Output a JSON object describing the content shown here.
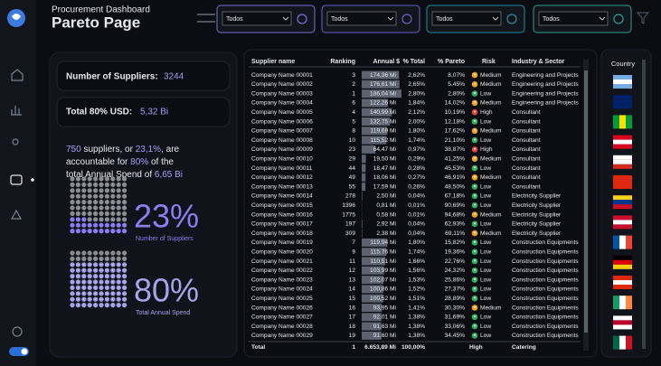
{
  "header": {
    "subtitle": "Procurement Dashboard",
    "title": "Pareto Page",
    "filters": [
      "Todos",
      "Todos",
      "Todos",
      "Todos"
    ]
  },
  "cards": {
    "suppliers_label": "Number of Suppliers:",
    "suppliers_value": "3244",
    "total_label": "Total 80% USD:",
    "total_value": "5,32 Bi"
  },
  "narrative": [
    "750",
    " suppliers, or ",
    "23,1%",
    ", are accountable for ",
    "80%",
    " of the total Annual Spend of ",
    "6,65 Bi"
  ],
  "waffles": [
    {
      "value": 23,
      "label": "23%",
      "caption": "Number of Suppliers",
      "color": "#8f7cf2"
    },
    {
      "value": 80,
      "label": "80%",
      "caption": "Total Annual Spend",
      "color": "#a7a3e8"
    }
  ],
  "table": {
    "columns": [
      "Supplier name",
      "Ranking",
      "Annual $",
      "% Total",
      "% Pareto",
      "Risk",
      "Industry & Sector"
    ],
    "risk_colors": {
      "High": "#e0463c",
      "Medium": "#f0a020",
      "Low": "#2fae5c"
    },
    "rows": [
      [
        "Company Name 00001",
        3,
        {
          "value": 174.36,
          "label": "174,36 Mi"
        },
        "2,62%",
        "8,07%",
        "Medium",
        "Engineering and Projects"
      ],
      [
        "Company Name 00002",
        2,
        {
          "value": 176.61,
          "label": "176,61 Mi"
        },
        "2,65%",
        "5,45%",
        "Medium",
        "Engineering and Projects"
      ],
      [
        "Company Name 00003",
        1,
        {
          "value": 186.04,
          "label": "186,04 Mi"
        },
        "2,80%",
        "2,80%",
        "Low",
        "Engineering and Projects"
      ],
      [
        "Company Name 00004",
        6,
        {
          "value": 122.26,
          "label": "122,26 Mi"
        },
        "1,84%",
        "14,02%",
        "Medium",
        "Engineering and Projects"
      ],
      [
        "Company Name 00005",
        4,
        {
          "value": 140.99,
          "label": "140,99 Mi"
        },
        "2,12%",
        "10,19%",
        "High",
        "Consultant"
      ],
      [
        "Company Name 00006",
        5,
        {
          "value": 132.75,
          "label": "132,75 Mi"
        },
        "2,00%",
        "12,18%",
        "Low",
        "Consultant"
      ],
      [
        "Company Name 00007",
        8,
        {
          "value": 119.69,
          "label": "119,69 Mi"
        },
        "1,80%",
        "17,62%",
        "Medium",
        "Consultant"
      ],
      [
        "Company Name 00008",
        10,
        {
          "value": 115.52,
          "label": "115,52 Mi"
        },
        "1,74%",
        "21,10%",
        "Low",
        "Consultant"
      ],
      [
        "Company Name 00009",
        23,
        {
          "value": 64.47,
          "label": "64,47 Mi"
        },
        "0,97%",
        "38,87%",
        "High",
        "Consultant"
      ],
      [
        "Company Name 00010",
        29,
        {
          "value": 19.5,
          "label": "19,50 Mi"
        },
        "0,29%",
        "41,25%",
        "Medium",
        "Consultant"
      ],
      [
        "Company Name 00011",
        44,
        {
          "value": 18.47,
          "label": "18,47 Mi"
        },
        "0,28%",
        "45,53%",
        "Low",
        "Consultant"
      ],
      [
        "Company Name 00012",
        49,
        {
          "value": 18.06,
          "label": "18,06 Mi"
        },
        "0,27%",
        "46,91%",
        "Medium",
        "Consultant"
      ],
      [
        "Company Name 00013",
        55,
        {
          "value": 17.59,
          "label": "17,59 Mi"
        },
        "0,26%",
        "48,50%",
        "Low",
        "Consultant"
      ],
      [
        "Company Name 00014",
        278,
        {
          "value": 2.5,
          "label": "2,50 Mi"
        },
        "0,04%",
        "67,18%",
        "Low",
        "Electricity Supplier"
      ],
      [
        "Company Name 00015",
        1396,
        {
          "value": 0.81,
          "label": "0,81 Mi"
        },
        "0,01%",
        "90,69%",
        "Low",
        "Electricity Supplier"
      ],
      [
        "Company Name 00016",
        1775,
        {
          "value": 0.58,
          "label": "0,58 Mi"
        },
        "0,01%",
        "94,68%",
        "Medium",
        "Electricity Supplier"
      ],
      [
        "Company Name 00017",
        197,
        {
          "value": 2.92,
          "label": "2,92 Mi"
        },
        "0,04%",
        "62,93%",
        "Low",
        "Electricity Supplier"
      ],
      [
        "Company Name 00018",
        309,
        {
          "value": 2.38,
          "label": "2,38 Mi"
        },
        "0,04%",
        "69,11%",
        "Medium",
        "Electricity Supplier"
      ],
      [
        "Company Name 00019",
        7,
        {
          "value": 119.94,
          "label": "119,94 Mi"
        },
        "1,80%",
        "15,82%",
        "Low",
        "Construction Equipments"
      ],
      [
        "Company Name 00020",
        9,
        {
          "value": 115.76,
          "label": "115,76 Mi"
        },
        "1,74%",
        "19,36%",
        "Low",
        "Construction Equipments"
      ],
      [
        "Company Name 00021",
        11,
        {
          "value": 110.51,
          "label": "110,51 Mi"
        },
        "1,66%",
        "22,76%",
        "Low",
        "Construction Equipments"
      ],
      [
        "Company Name 00022",
        12,
        {
          "value": 103.99,
          "label": "103,99 Mi"
        },
        "1,56%",
        "24,32%",
        "Low",
        "Construction Equipments"
      ],
      [
        "Company Name 00023",
        13,
        {
          "value": 102.07,
          "label": "102,07 Mi"
        },
        "1,53%",
        "25,86%",
        "Low",
        "Construction Equipments"
      ],
      [
        "Company Name 00024",
        14,
        {
          "value": 100.86,
          "label": "100,86 Mi"
        },
        "1,52%",
        "27,37%",
        "Low",
        "Construction Equipments"
      ],
      [
        "Company Name 00025",
        15,
        {
          "value": 100.52,
          "label": "100,52 Mi"
        },
        "1,51%",
        "28,89%",
        "Low",
        "Construction Equipments"
      ],
      [
        "Company Name 00026",
        16,
        {
          "value": 93.95,
          "label": "93,95 Mi"
        },
        "1,41%",
        "30,30%",
        "Medium",
        "Construction Equipments"
      ],
      [
        "Company Name 00027",
        17,
        {
          "value": 92.01,
          "label": "92,01 Mi"
        },
        "1,38%",
        "31,69%",
        "Low",
        "Construction Equipments"
      ],
      [
        "Company Name 00028",
        18,
        {
          "value": 91.63,
          "label": "91,63 Mi"
        },
        "1,38%",
        "33,06%",
        "Low",
        "Construction Equipments"
      ],
      [
        "Company Name 00029",
        19,
        {
          "value": 91.6,
          "label": "91,60 Mi"
        },
        "1,38%",
        "34,45%",
        "Low",
        "Construction Equipments"
      ]
    ],
    "total": [
      "Total",
      1,
      "6.653,89 Mi",
      "100,00%",
      null,
      "High",
      "Catering"
    ]
  },
  "country": {
    "title": "Country"
  }
}
